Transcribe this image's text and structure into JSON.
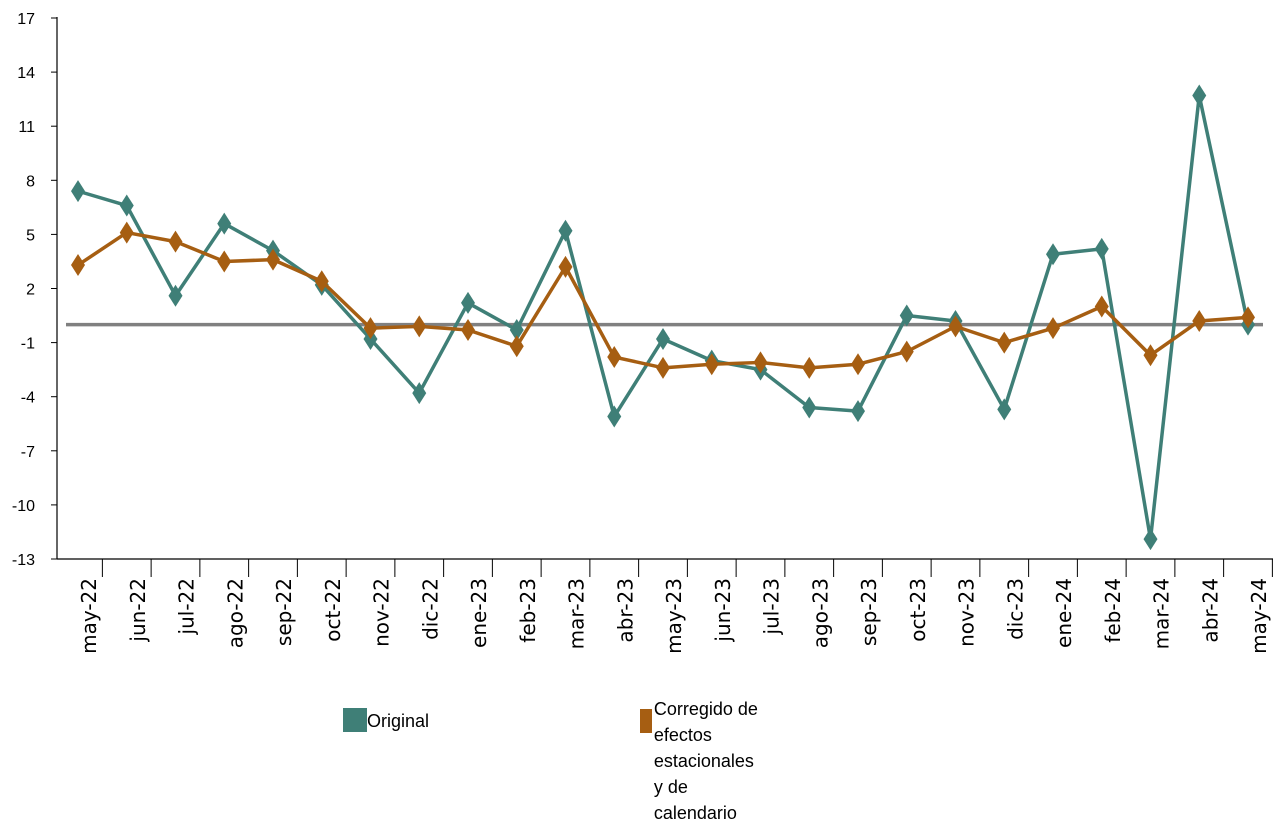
{
  "chart_data": {
    "type": "line",
    "categories": [
      "may-22",
      "jun-22",
      "jul-22",
      "ago-22",
      "sep-22",
      "oct-22",
      "nov-22",
      "dic-22",
      "ene-23",
      "feb-23",
      "mar-23",
      "abr-23",
      "may-23",
      "jun-23",
      "jul-23",
      "ago-23",
      "sep-23",
      "oct-23",
      "nov-23",
      "dic-23",
      "ene-24",
      "feb-24",
      "mar-24",
      "abr-24",
      "may-24"
    ],
    "yticks": [
      17,
      14,
      11,
      8,
      5,
      2,
      -1,
      -4,
      -7,
      -10,
      -13
    ],
    "ylim": [
      -13,
      17
    ],
    "reference_line": 0,
    "series": [
      {
        "name": "Original",
        "color": "#3f7f77",
        "values": [
          7.4,
          6.6,
          1.6,
          5.6,
          4.1,
          2.2,
          -0.8,
          -3.8,
          1.2,
          -0.3,
          5.2,
          -5.1,
          -0.8,
          -2.0,
          -2.5,
          -4.6,
          -4.8,
          0.5,
          0.2,
          -4.7,
          3.9,
          4.2,
          -11.9,
          12.7,
          0.0
        ]
      },
      {
        "name": "Corregido de efectos estacionales y de calendario",
        "color": "#a65e12",
        "values": [
          3.3,
          5.1,
          4.6,
          3.5,
          3.6,
          2.4,
          -0.2,
          -0.1,
          -0.3,
          -1.2,
          3.2,
          -1.8,
          -2.4,
          -2.2,
          -2.1,
          -2.4,
          -2.2,
          -1.5,
          -0.1,
          -1.0,
          -0.2,
          1.0,
          -1.7,
          0.2,
          0.4
        ]
      }
    ]
  },
  "legend": {
    "original_label": "Original",
    "corregido_line1": "Corregido de efectos",
    "corregido_line2": "estacionales y de calendario",
    "original_color": "#3f7f77",
    "corregido_color": "#a65e12"
  }
}
